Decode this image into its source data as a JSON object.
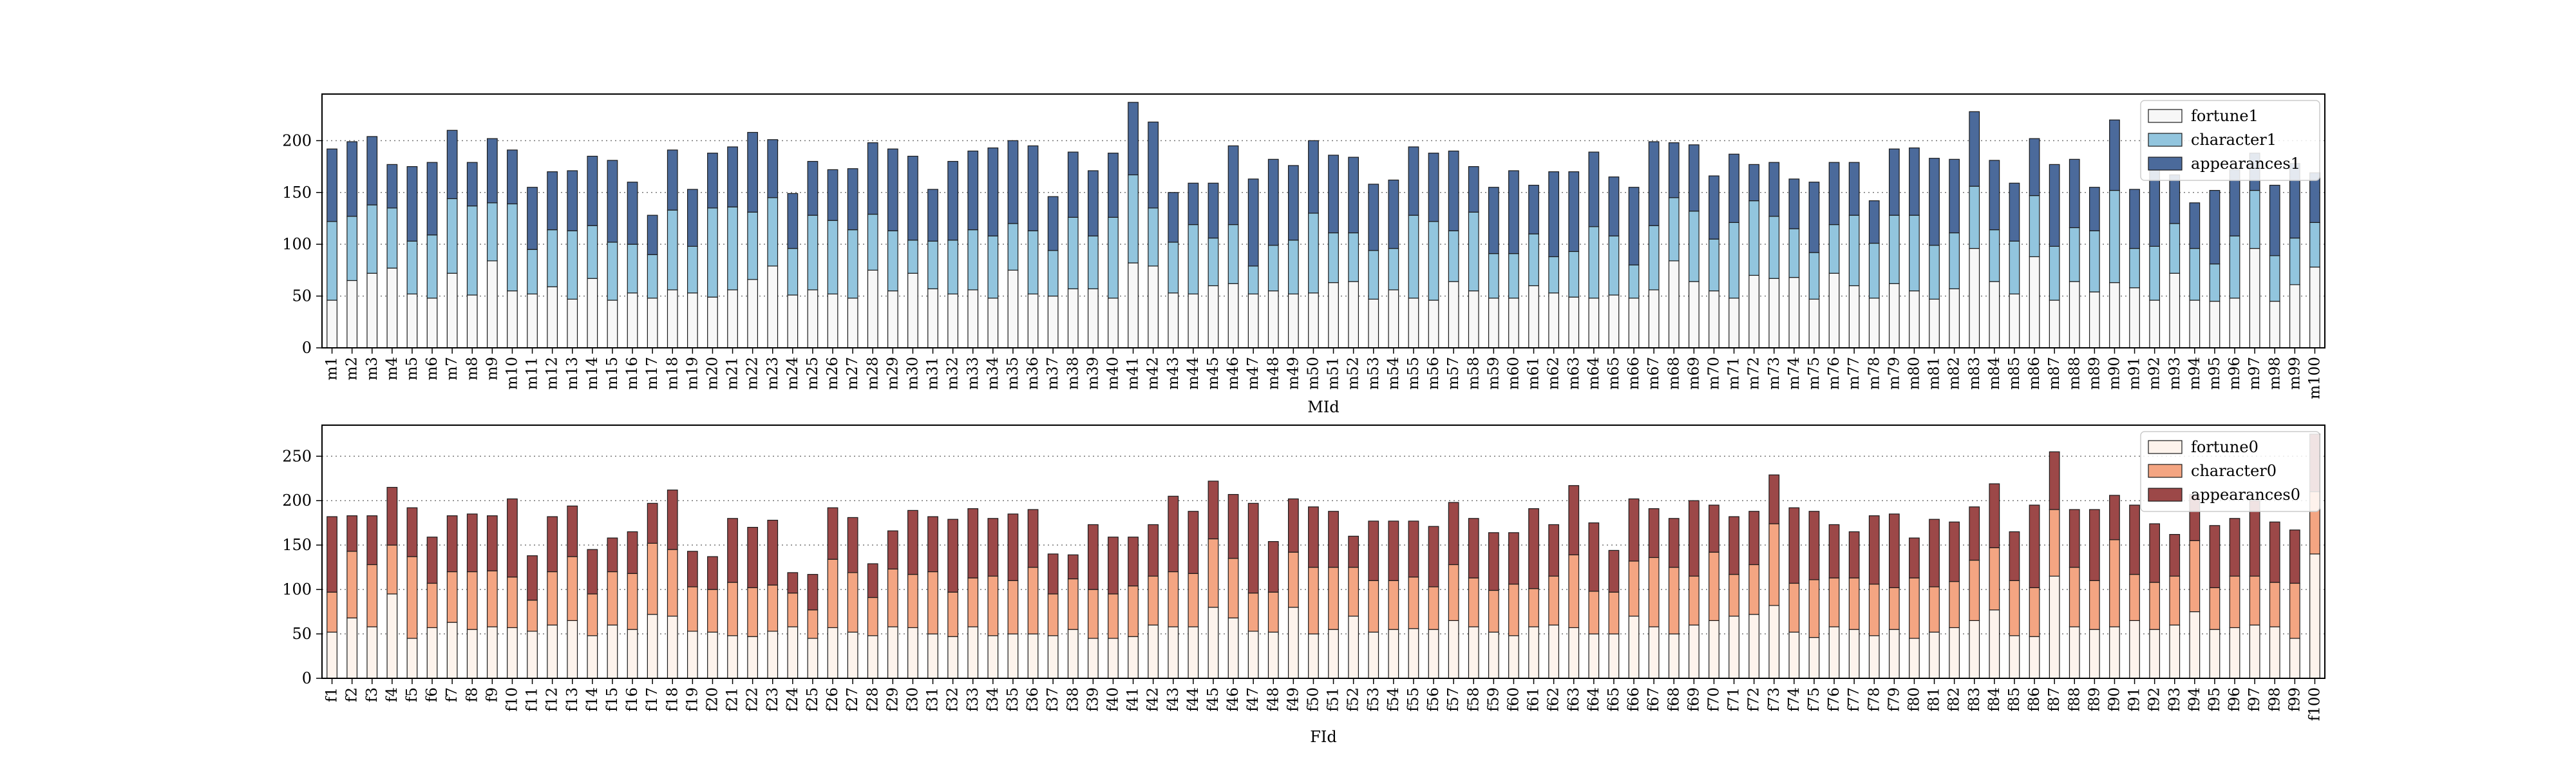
{
  "chart_data": [
    {
      "type": "bar",
      "stacked": true,
      "xlabel": "MId",
      "ylabel": "",
      "ylim": [
        0,
        245
      ],
      "yticks": [
        0,
        50,
        100,
        150,
        200
      ],
      "grid": "horizontal dotted",
      "legend_position": "top-right",
      "categories": [
        "m1",
        "m2",
        "m3",
        "m4",
        "m5",
        "m6",
        "m7",
        "m8",
        "m9",
        "m10",
        "m11",
        "m12",
        "m13",
        "m14",
        "m15",
        "m16",
        "m17",
        "m18",
        "m19",
        "m20",
        "m21",
        "m22",
        "m23",
        "m24",
        "m25",
        "m26",
        "m27",
        "m28",
        "m29",
        "m30",
        "m31",
        "m32",
        "m33",
        "m34",
        "m35",
        "m36",
        "m37",
        "m38",
        "m39",
        "m40",
        "m41",
        "m42",
        "m43",
        "m44",
        "m45",
        "m46",
        "m47",
        "m48",
        "m49",
        "m50",
        "m51",
        "m52",
        "m53",
        "m54",
        "m55",
        "m56",
        "m57",
        "m58",
        "m59",
        "m60",
        "m61",
        "m62",
        "m63",
        "m64",
        "m65",
        "m66",
        "m67",
        "m68",
        "m69",
        "m70",
        "m71",
        "m72",
        "m73",
        "m74",
        "m75",
        "m76",
        "m77",
        "m78",
        "m79",
        "m80",
        "m81",
        "m82",
        "m83",
        "m84",
        "m85",
        "m86",
        "m87",
        "m88",
        "m89",
        "m90",
        "m91",
        "m92",
        "m93",
        "m94",
        "m95",
        "m96",
        "m97",
        "m98",
        "m99",
        "m100"
      ],
      "series": [
        {
          "name": "fortune1",
          "color": "#f7f7f7",
          "values": [
            46,
            65,
            72,
            77,
            52,
            48,
            72,
            51,
            84,
            55,
            52,
            59,
            47,
            67,
            46,
            53,
            48,
            56,
            53,
            49,
            56,
            66,
            79,
            51,
            56,
            52,
            48,
            75,
            55,
            72,
            57,
            52,
            56,
            48,
            75,
            52,
            50,
            57,
            57,
            48,
            82,
            79,
            53,
            52,
            60,
            62,
            52,
            55,
            52,
            53,
            63,
            64,
            47,
            56,
            48,
            46,
            64,
            55,
            48,
            48,
            60,
            53,
            49,
            48,
            51,
            48,
            56,
            84,
            64,
            55,
            48,
            70,
            67,
            68,
            47,
            72,
            60,
            48,
            62,
            55,
            47,
            57,
            96,
            64,
            52,
            88,
            46,
            64,
            54,
            63,
            58,
            46,
            72,
            46,
            45,
            48,
            96,
            45,
            61,
            78
          ]
        },
        {
          "name": "character1",
          "color": "#92c5de",
          "values": [
            76,
            62,
            66,
            58,
            51,
            61,
            72,
            86,
            56,
            84,
            43,
            55,
            66,
            51,
            56,
            47,
            42,
            77,
            45,
            86,
            80,
            65,
            66,
            45,
            72,
            71,
            66,
            54,
            58,
            32,
            46,
            52,
            58,
            60,
            45,
            61,
            44,
            69,
            51,
            78,
            85,
            56,
            49,
            67,
            46,
            57,
            27,
            44,
            52,
            77,
            48,
            47,
            47,
            40,
            80,
            76,
            49,
            76,
            43,
            43,
            50,
            35,
            44,
            69,
            57,
            32,
            62,
            61,
            68,
            50,
            73,
            72,
            60,
            47,
            45,
            47,
            68,
            53,
            66,
            73,
            52,
            54,
            60,
            50,
            51,
            59,
            52,
            52,
            59,
            89,
            38,
            52,
            48,
            50,
            36,
            60,
            56,
            44,
            45,
            43
          ]
        },
        {
          "name": "appearances1",
          "color": "#4b6a9b",
          "values": [
            70,
            72,
            66,
            42,
            72,
            70,
            66,
            42,
            62,
            52,
            60,
            56,
            58,
            67,
            79,
            60,
            38,
            58,
            55,
            53,
            58,
            77,
            56,
            53,
            52,
            49,
            59,
            69,
            79,
            81,
            50,
            76,
            76,
            85,
            80,
            82,
            52,
            63,
            63,
            62,
            70,
            83,
            48,
            40,
            53,
            76,
            84,
            83,
            72,
            70,
            75,
            73,
            64,
            66,
            66,
            66,
            77,
            44,
            64,
            80,
            47,
            82,
            77,
            72,
            57,
            75,
            81,
            53,
            64,
            61,
            66,
            35,
            52,
            48,
            68,
            60,
            51,
            41,
            64,
            65,
            84,
            71,
            72,
            67,
            56,
            55,
            79,
            66,
            42,
            68,
            57,
            84,
            47,
            44,
            71,
            64,
            36,
            68,
            72,
            48
          ]
        }
      ]
    },
    {
      "type": "bar",
      "stacked": true,
      "xlabel": "FId",
      "ylabel": "",
      "ylim": [
        0,
        285
      ],
      "yticks": [
        0,
        50,
        100,
        150,
        200,
        250
      ],
      "grid": "horizontal dotted",
      "legend_position": "top-right",
      "categories": [
        "f1",
        "f2",
        "f3",
        "f4",
        "f5",
        "f6",
        "f7",
        "f8",
        "f9",
        "f10",
        "f11",
        "f12",
        "f13",
        "f14",
        "f15",
        "f16",
        "f17",
        "f18",
        "f19",
        "f20",
        "f21",
        "f22",
        "f23",
        "f24",
        "f25",
        "f26",
        "f27",
        "f28",
        "f29",
        "f30",
        "f31",
        "f32",
        "f33",
        "f34",
        "f35",
        "f36",
        "f37",
        "f38",
        "f39",
        "f40",
        "f41",
        "f42",
        "f43",
        "f44",
        "f45",
        "f46",
        "f47",
        "f48",
        "f49",
        "f50",
        "f51",
        "f52",
        "f53",
        "f54",
        "f55",
        "f56",
        "f57",
        "f58",
        "f59",
        "f60",
        "f61",
        "f62",
        "f63",
        "f64",
        "f65",
        "f66",
        "f67",
        "f68",
        "f69",
        "f70",
        "f71",
        "f72",
        "f73",
        "f74",
        "f75",
        "f76",
        "f77",
        "f78",
        "f79",
        "f80",
        "f81",
        "f82",
        "f83",
        "f84",
        "f85",
        "f86",
        "f87",
        "f88",
        "f89",
        "f90",
        "f91",
        "f92",
        "f93",
        "f94",
        "f95",
        "f96",
        "f97",
        "f98",
        "f99",
        "f100"
      ],
      "series": [
        {
          "name": "fortune0",
          "color": "#fdf3ec",
          "values": [
            52,
            68,
            58,
            95,
            45,
            57,
            63,
            55,
            58,
            57,
            53,
            60,
            65,
            48,
            60,
            55,
            72,
            70,
            53,
            52,
            48,
            47,
            53,
            58,
            45,
            57,
            52,
            48,
            58,
            57,
            50,
            47,
            58,
            48,
            50,
            50,
            48,
            55,
            45,
            45,
            47,
            60,
            58,
            58,
            80,
            68,
            53,
            52,
            80,
            50,
            55,
            70,
            52,
            55,
            56,
            55,
            65,
            58,
            52,
            48,
            58,
            60,
            57,
            50,
            50,
            70,
            58,
            50,
            60,
            65,
            70,
            72,
            82,
            52,
            46,
            58,
            55,
            48,
            55,
            45,
            52,
            57,
            65,
            77,
            48,
            47,
            115,
            58,
            55,
            58,
            65,
            55,
            60,
            75,
            55,
            57,
            60,
            58,
            45,
            140
          ]
        },
        {
          "name": "character0",
          "color": "#f4a582",
          "values": [
            45,
            75,
            70,
            55,
            92,
            50,
            57,
            65,
            63,
            57,
            35,
            60,
            72,
            47,
            60,
            63,
            80,
            75,
            50,
            48,
            60,
            55,
            52,
            38,
            32,
            77,
            67,
            43,
            65,
            60,
            70,
            50,
            55,
            67,
            60,
            75,
            47,
            57,
            55,
            50,
            57,
            55,
            62,
            60,
            77,
            67,
            43,
            45,
            62,
            75,
            70,
            55,
            58,
            55,
            58,
            48,
            63,
            55,
            47,
            58,
            43,
            55,
            82,
            48,
            47,
            62,
            78,
            75,
            55,
            77,
            47,
            56,
            92,
            55,
            65,
            55,
            58,
            58,
            47,
            68,
            51,
            52,
            68,
            70,
            62,
            55,
            75,
            67,
            55,
            98,
            52,
            53,
            55,
            80,
            47,
            58,
            55,
            50,
            62,
            70
          ]
        },
        {
          "name": "appearances0",
          "color": "#9c4848",
          "values": [
            85,
            40,
            55,
            65,
            55,
            52,
            63,
            65,
            62,
            88,
            50,
            62,
            57,
            50,
            38,
            47,
            45,
            67,
            40,
            37,
            72,
            68,
            73,
            23,
            40,
            58,
            62,
            38,
            43,
            72,
            62,
            82,
            78,
            65,
            75,
            65,
            45,
            27,
            73,
            64,
            55,
            58,
            85,
            70,
            65,
            72,
            101,
            57,
            60,
            68,
            63,
            35,
            67,
            67,
            63,
            68,
            70,
            67,
            65,
            58,
            90,
            58,
            78,
            77,
            47,
            70,
            55,
            55,
            85,
            53,
            65,
            60,
            55,
            85,
            77,
            60,
            52,
            77,
            83,
            45,
            76,
            67,
            60,
            72,
            55,
            93,
            65,
            65,
            80,
            50,
            78,
            66,
            47,
            52,
            70,
            65,
            85,
            68,
            60,
            65
          ]
        }
      ]
    }
  ]
}
